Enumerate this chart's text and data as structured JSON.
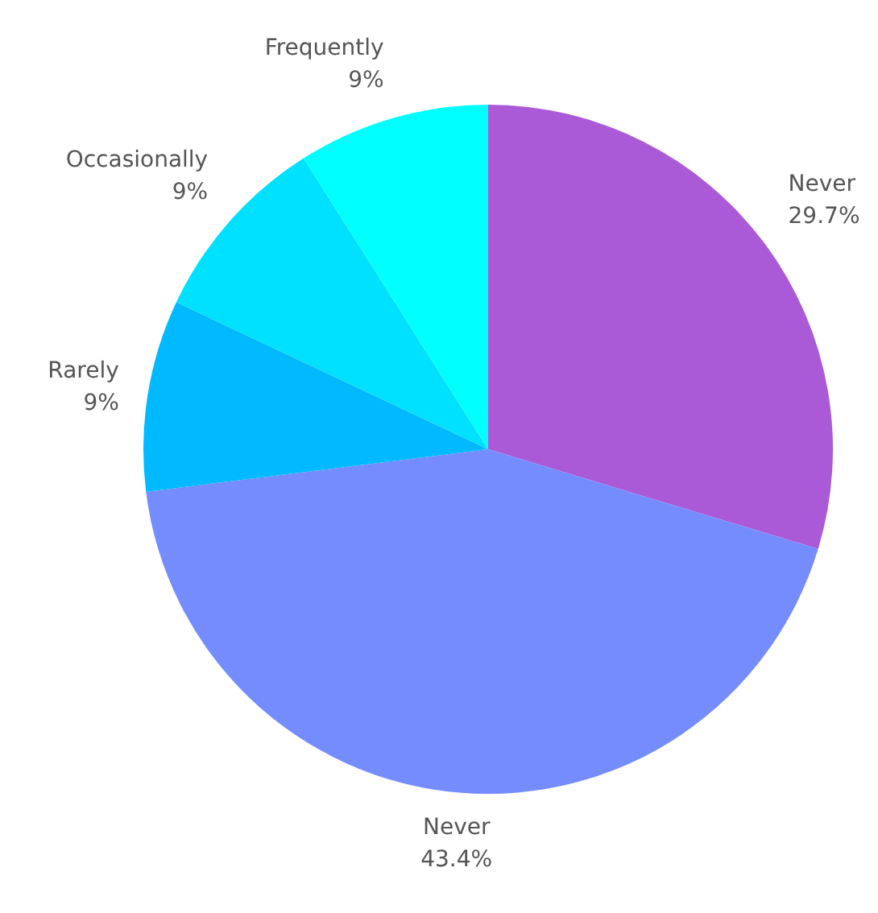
{
  "chart_data": {
    "type": "pie",
    "categories": [
      "Never",
      "Never",
      "Rarely",
      "Occasionally",
      "Frequently"
    ],
    "values": [
      29.7,
      43.4,
      9,
      9,
      9
    ],
    "colors": [
      "#aa5ad6",
      "#758cff",
      "#00b9ff",
      "#00e0ff",
      "#00ffff"
    ],
    "value_labels": [
      "29.7%",
      "43.4%",
      "9%",
      "9%",
      "9%"
    ]
  }
}
